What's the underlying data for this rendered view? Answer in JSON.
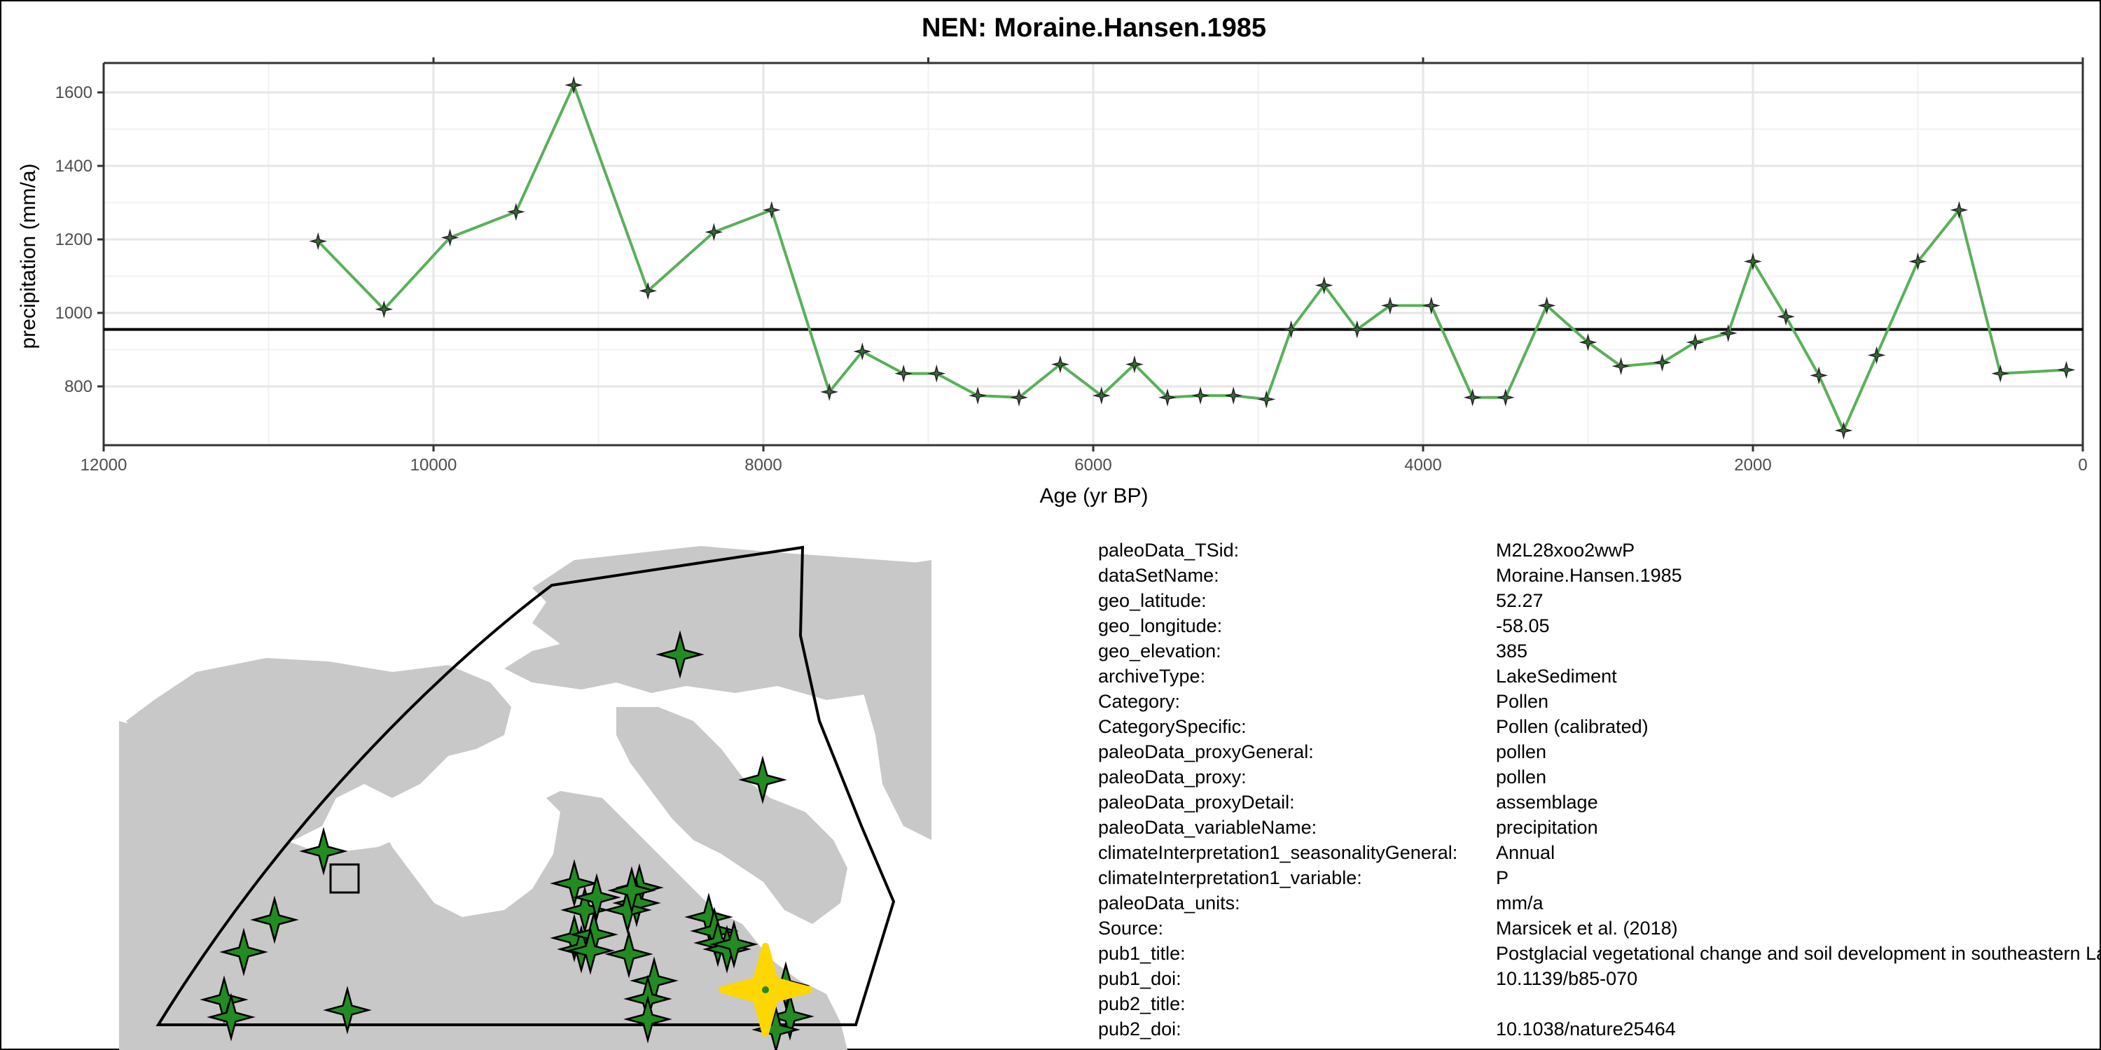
{
  "chart_data": {
    "type": "line",
    "title": "NEN: Moraine.Hansen.1985",
    "xlabel": "Age (yr BP)",
    "ylabel": "precipitation (mm/a)",
    "xlim": [
      12000,
      0
    ],
    "ylim": [
      640,
      1680
    ],
    "x_reversed": true,
    "x_ticks": [
      12000,
      10000,
      8000,
      6000,
      4000,
      2000,
      0
    ],
    "x_tick_labels": [
      "12000",
      "10000",
      "8000",
      "6000",
      "4000",
      "2000",
      "0"
    ],
    "y_ticks": [
      800,
      1000,
      1200,
      1400,
      1600
    ],
    "y_tick_labels": [
      "800",
      "1000",
      "1200",
      "1400",
      "1600"
    ],
    "reference_line": 955,
    "grid": true,
    "colors": {
      "line": "#5aaf5a",
      "point": "#3a6b3a",
      "reference": "#000000"
    },
    "series": [
      {
        "x": [
          10700,
          10300,
          9900,
          9500,
          9150,
          8700,
          8300,
          7950,
          7600,
          7400,
          7150,
          6950,
          6700,
          6450,
          6200,
          5950,
          5750,
          5550,
          5350,
          5150,
          4950,
          4800,
          4600,
          4400,
          4200,
          3950,
          3700,
          3500,
          3250,
          3000,
          2800,
          2550,
          2350,
          2150,
          2000,
          1800,
          1600,
          1450,
          1250,
          1000,
          750,
          500,
          100
        ],
        "y": [
          1195,
          1010,
          1205,
          1275,
          1620,
          1060,
          1220,
          1280,
          785,
          895,
          835,
          835,
          775,
          770,
          860,
          775,
          860,
          770,
          775,
          775,
          765,
          955,
          1075,
          955,
          1020,
          1020,
          770,
          770,
          1020,
          920,
          855,
          865,
          920,
          945,
          1140,
          990,
          830,
          680,
          885,
          1140,
          1280,
          835,
          845
        ]
      }
    ]
  },
  "metadata": [
    {
      "key": "paleoData_TSid:",
      "value": "M2L28xoo2wwP"
    },
    {
      "key": "dataSetName:",
      "value": "Moraine.Hansen.1985"
    },
    {
      "key": "geo_latitude:",
      "value": "52.27"
    },
    {
      "key": "geo_longitude:",
      "value": "-58.05"
    },
    {
      "key": "geo_elevation:",
      "value": "385"
    },
    {
      "key": "archiveType:",
      "value": "LakeSediment"
    },
    {
      "key": "Category:",
      "value": "Pollen"
    },
    {
      "key": "CategorySpecific:",
      "value": "Pollen (calibrated)"
    },
    {
      "key": "paleoData_proxyGeneral:",
      "value": "pollen"
    },
    {
      "key": "paleoData_proxy:",
      "value": "pollen"
    },
    {
      "key": "paleoData_proxyDetail:",
      "value": "assemblage"
    },
    {
      "key": "paleoData_variableName:",
      "value": "precipitation"
    },
    {
      "key": "climateInterpretation1_seasonalityGeneral:",
      "value": "Annual"
    },
    {
      "key": "climateInterpretation1_variable:",
      "value": "P"
    },
    {
      "key": "paleoData_units:",
      "value": "mm/a"
    },
    {
      "key": "Source:",
      "value": "Marsicek et al. (2018)"
    },
    {
      "key": "pub1_title:",
      "value": "Postglacial vegetational change and soil development in southeastern Labrador"
    },
    {
      "key": "pub1_doi:",
      "value": "10.1139/b85-070"
    },
    {
      "key": "pub2_title:",
      "value": ""
    },
    {
      "key": "pub2_doi:",
      "value": "10.1038/nature25464"
    }
  ],
  "map": {
    "land_color": "#c8c8c8",
    "site_marker_color": "#228b22",
    "highlight_marker_color": "#ffd700"
  }
}
